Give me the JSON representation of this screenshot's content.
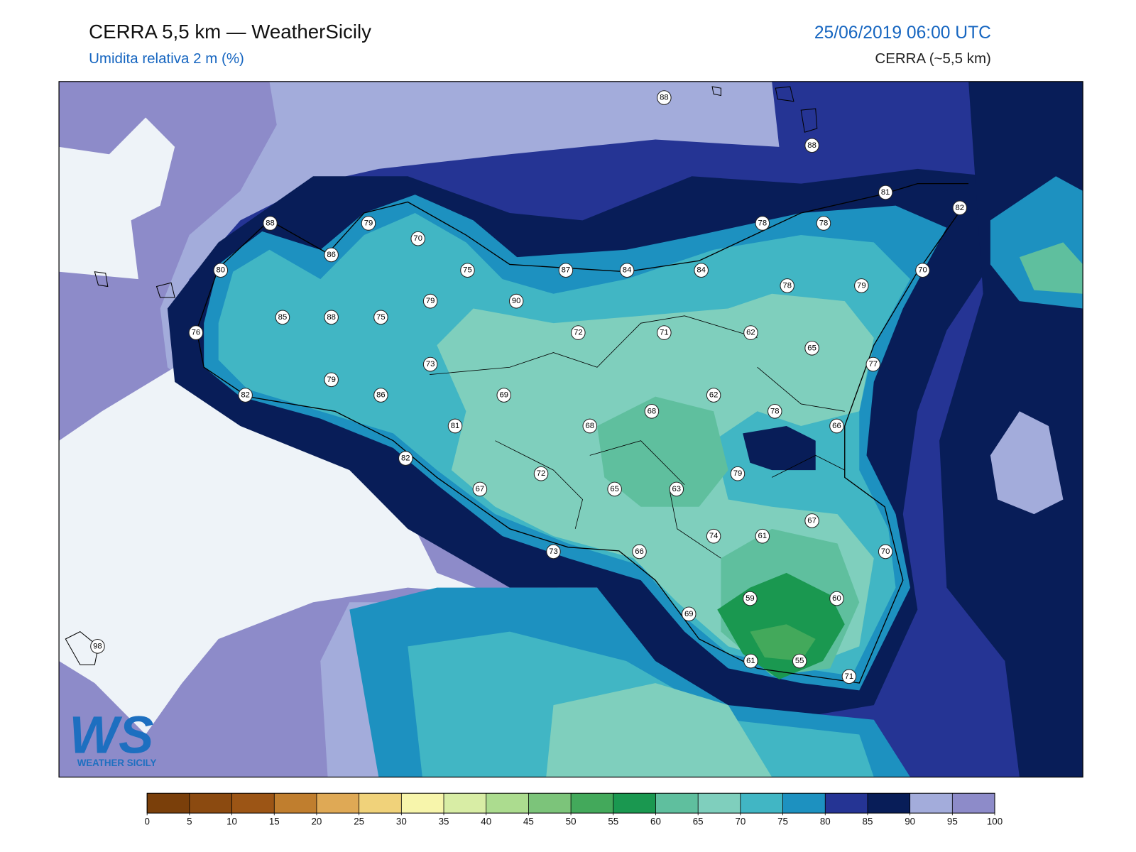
{
  "header": {
    "title": "CERRA 5,5 km — WeatherSicily",
    "subtitle": "Umidita relativa 2 m (%)",
    "datetime": "25/06/2019 06:00 UTC",
    "model": "CERRA (~5,5 km)"
  },
  "logo": {
    "mark": "WS",
    "text": "WEATHER SICILY"
  },
  "stations": [
    88,
    88,
    81,
    82,
    88,
    79,
    70,
    86,
    80,
    75,
    87,
    84,
    84,
    78,
    78,
    78,
    79,
    70,
    79,
    90,
    85,
    88,
    75,
    76,
    72,
    71,
    62,
    65,
    77,
    73,
    79,
    86,
    82,
    69,
    62,
    68,
    78,
    68,
    66,
    81,
    82,
    72,
    79,
    67,
    65,
    63,
    74,
    61,
    67,
    70,
    73,
    66,
    59,
    60,
    69,
    61,
    55,
    71,
    98
  ],
  "colorbar": {
    "ticks": [
      0,
      5,
      10,
      15,
      20,
      25,
      30,
      35,
      40,
      45,
      50,
      55,
      60,
      65,
      70,
      75,
      80,
      85,
      90,
      95,
      100
    ],
    "colors": [
      "#7a3f0a",
      "#8b4a10",
      "#9c5515",
      "#c07e2e",
      "#dfa955",
      "#f0d27a",
      "#f7f5ab",
      "#d8eda5",
      "#acdc8f",
      "#7cc47a",
      "#43a95b",
      "#1a9850",
      "#5fbf9e",
      "#7fcfbd",
      "#41b6c4",
      "#1d91c0",
      "#253494",
      "#081d58",
      "#a3acdb",
      "#8d8bc9"
    ]
  }
}
